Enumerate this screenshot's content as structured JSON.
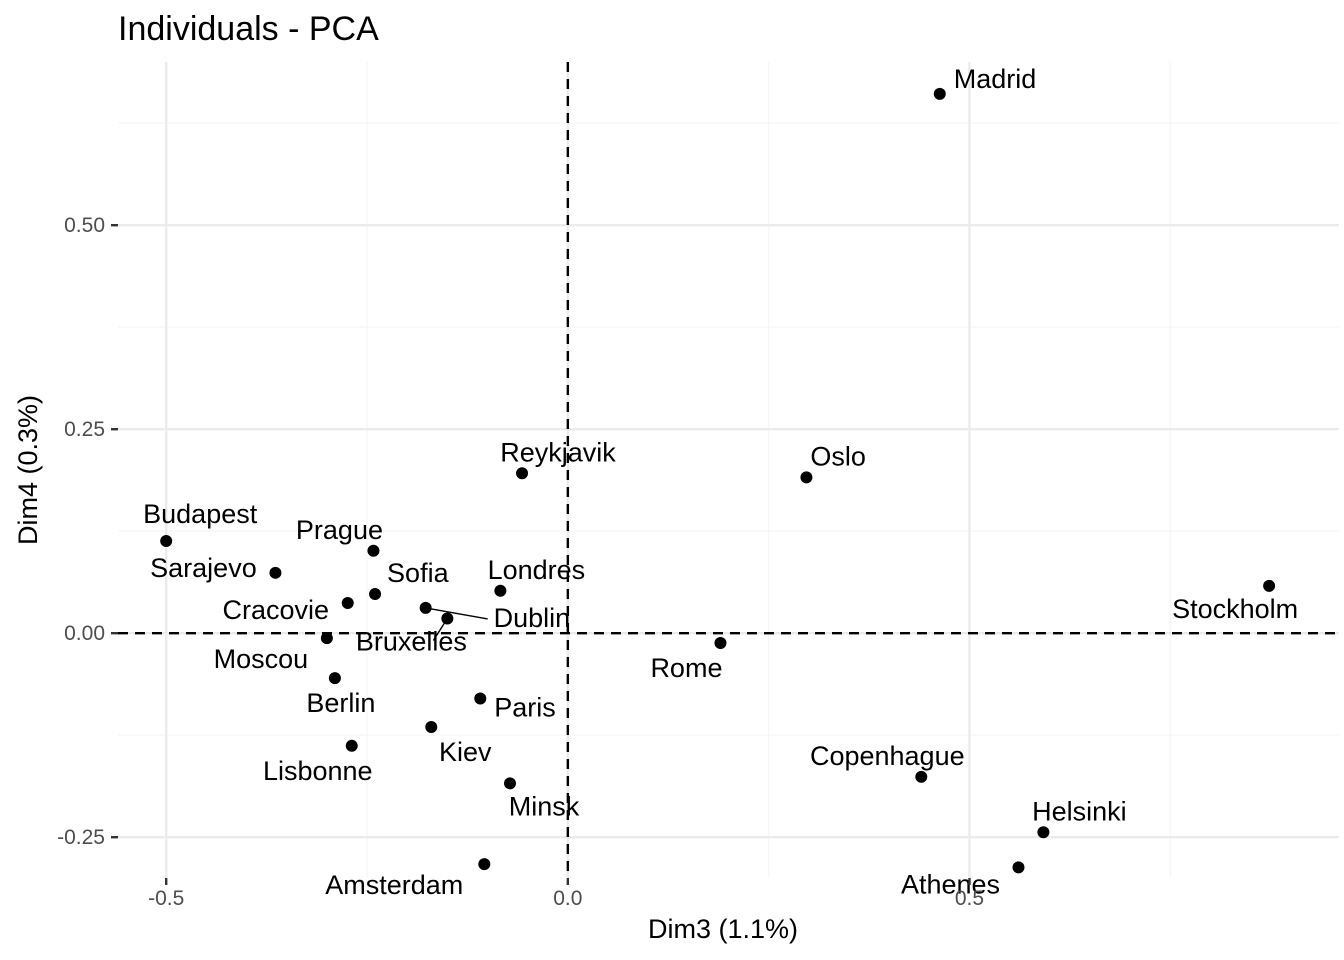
{
  "chart_data": {
    "type": "scatter",
    "title": "Individuals - PCA",
    "xlabel": "Dim3 (1.1%)",
    "ylabel": "Dim4 (0.3%)",
    "xlim": [
      -0.56,
      0.96
    ],
    "ylim": [
      -0.3,
      0.7
    ],
    "x_ticks": [
      -0.5,
      0.0,
      0.5
    ],
    "x_tick_labels": [
      "-0.5",
      "0.0",
      "0.5"
    ],
    "y_ticks": [
      -0.25,
      0.0,
      0.25,
      0.5
    ],
    "y_tick_labels": [
      "-0.25",
      "0.00",
      "0.25",
      "0.50"
    ],
    "grid": true,
    "reference_lines": {
      "x": 0,
      "y": 0,
      "style": "dashed"
    },
    "points": [
      {
        "label": "Madrid",
        "x": 0.463,
        "y": 0.661
      },
      {
        "label": "Reykjavik",
        "x": -0.057,
        "y": 0.196
      },
      {
        "label": "Oslo",
        "x": 0.297,
        "y": 0.191
      },
      {
        "label": "Budapest",
        "x": -0.5,
        "y": 0.113
      },
      {
        "label": "Prague",
        "x": -0.242,
        "y": 0.101
      },
      {
        "label": "Sarajevo",
        "x": -0.364,
        "y": 0.074
      },
      {
        "label": "Sofia",
        "x": -0.24,
        "y": 0.048
      },
      {
        "label": "Londres",
        "x": -0.084,
        "y": 0.052
      },
      {
        "label": "Cracovie",
        "x": -0.274,
        "y": 0.037
      },
      {
        "label": "Dublin",
        "x": -0.177,
        "y": 0.031
      },
      {
        "label": "Bruxelles",
        "x": -0.15,
        "y": 0.018
      },
      {
        "label": "Moscou",
        "x": -0.3,
        "y": -0.006
      },
      {
        "label": "Stockholm",
        "x": 0.873,
        "y": 0.058
      },
      {
        "label": "Rome",
        "x": 0.19,
        "y": -0.012
      },
      {
        "label": "Berlin",
        "x": -0.29,
        "y": -0.055
      },
      {
        "label": "Paris",
        "x": -0.109,
        "y": -0.08
      },
      {
        "label": "Kiev",
        "x": -0.17,
        "y": -0.115
      },
      {
        "label": "Lisbonne",
        "x": -0.269,
        "y": -0.138
      },
      {
        "label": "Minsk",
        "x": -0.072,
        "y": -0.184
      },
      {
        "label": "Copenhague",
        "x": 0.44,
        "y": -0.176
      },
      {
        "label": "Helsinki",
        "x": 0.592,
        "y": -0.244
      },
      {
        "label": "Athenes",
        "x": 0.561,
        "y": -0.287
      },
      {
        "label": "Amsterdam",
        "x": -0.104,
        "y": -0.283
      }
    ]
  }
}
